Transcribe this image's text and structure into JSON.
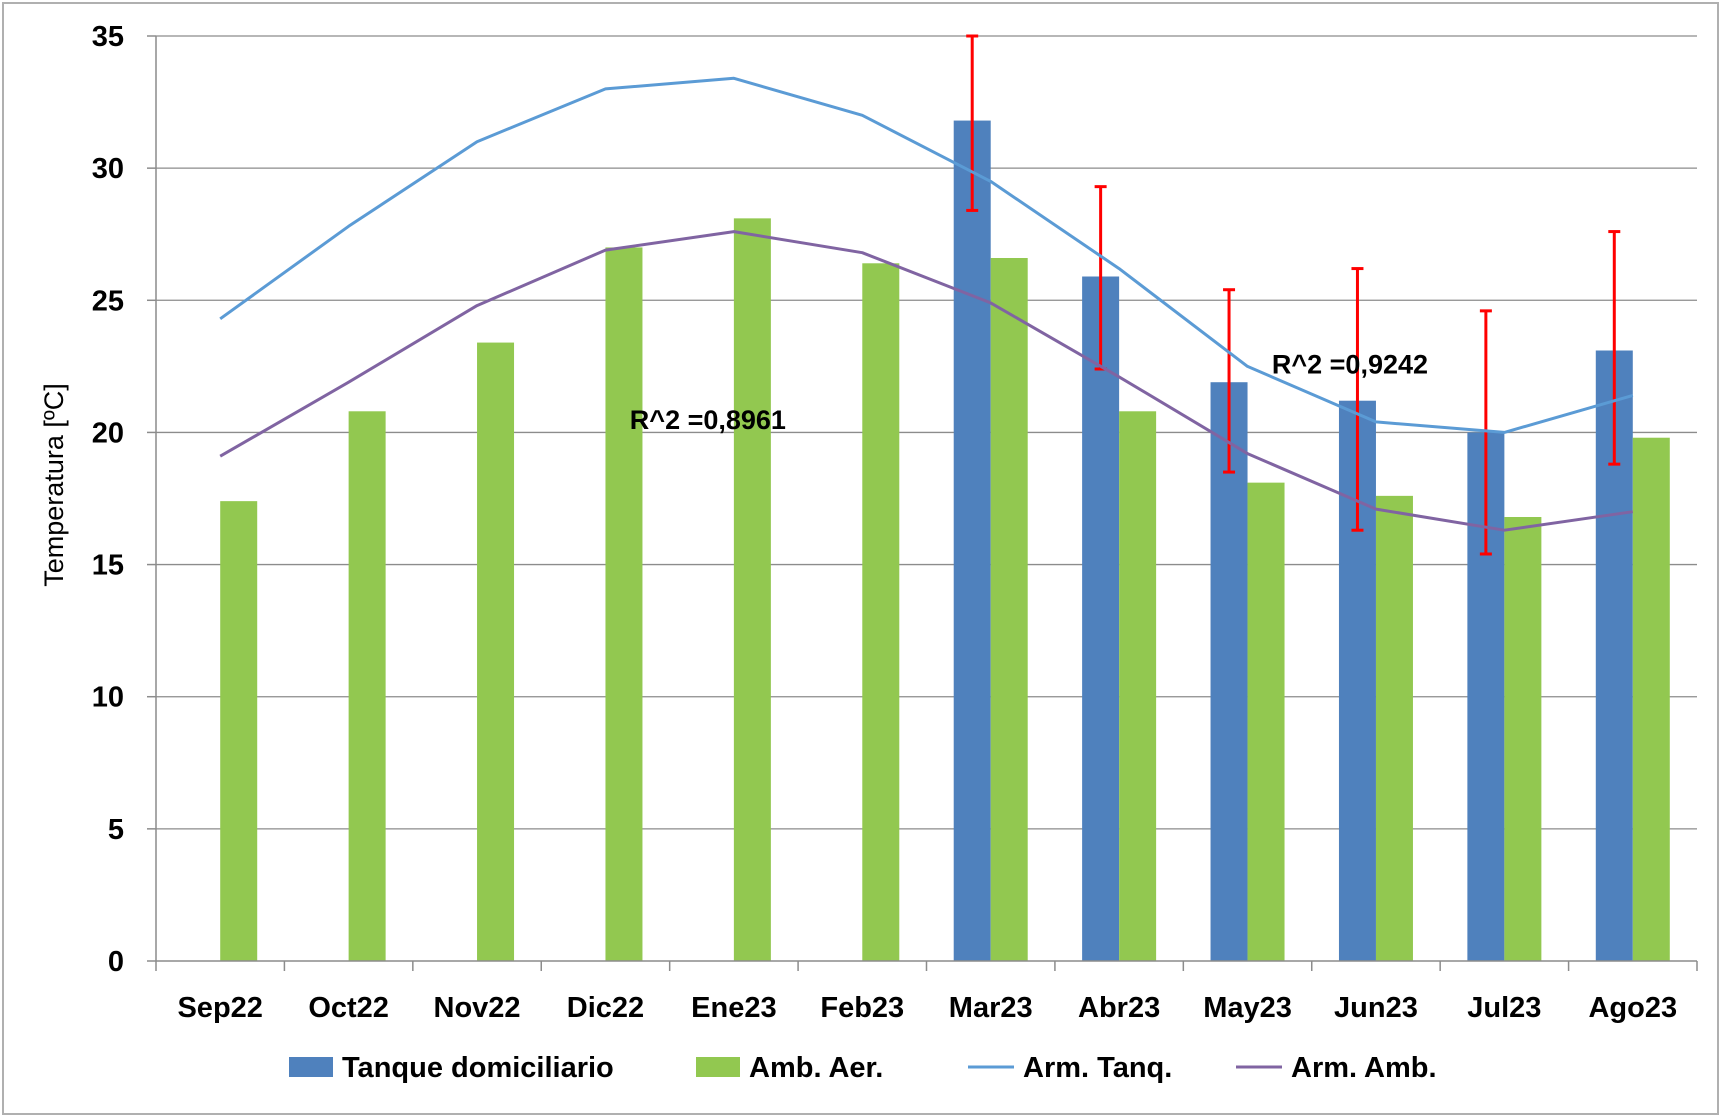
{
  "chart_data": {
    "type": "bar",
    "title": "",
    "xlabel": "",
    "ylabel": "Temperatura [ºC]",
    "ylim": [
      0,
      35
    ],
    "yticks": [
      0,
      5,
      10,
      15,
      20,
      25,
      30,
      35
    ],
    "grid": true,
    "legend_position": "bottom",
    "categories": [
      "Sep22",
      "Oct22",
      "Nov22",
      "Dic22",
      "Ene23",
      "Feb23",
      "Mar23",
      "Abr23",
      "May23",
      "Jun23",
      "Jul23",
      "Ago23"
    ],
    "series": [
      {
        "name": "Tanque domiciliario",
        "kind": "bar",
        "color": "#4f81bd",
        "values": [
          null,
          null,
          null,
          null,
          null,
          null,
          31.8,
          25.9,
          21.9,
          21.2,
          20.0,
          23.1
        ],
        "error_bars": {
          "color": "#ff0000",
          "low": [
            null,
            null,
            null,
            null,
            null,
            null,
            28.4,
            22.4,
            18.5,
            16.3,
            15.4,
            18.8
          ],
          "high": [
            null,
            null,
            null,
            null,
            null,
            null,
            35.0,
            29.3,
            25.4,
            26.2,
            24.6,
            27.6
          ]
        }
      },
      {
        "name": "Amb. Aer.",
        "kind": "bar",
        "color": "#92c850",
        "values": [
          17.4,
          20.8,
          23.4,
          27.0,
          28.1,
          26.4,
          26.6,
          20.8,
          18.1,
          17.6,
          16.8,
          19.8
        ]
      },
      {
        "name": "Arm. Tanq.",
        "kind": "line",
        "color": "#5b9bd5",
        "values": [
          24.3,
          27.8,
          31.0,
          33.0,
          33.4,
          32.0,
          29.5,
          26.2,
          22.5,
          20.4,
          20.0,
          21.4
        ]
      },
      {
        "name": "Arm. Amb.",
        "kind": "line",
        "color": "#8064a2",
        "values": [
          19.1,
          21.9,
          24.8,
          26.9,
          27.6,
          26.8,
          24.9,
          22.1,
          19.2,
          17.1,
          16.3,
          17.0
        ]
      }
    ],
    "annotations": [
      {
        "text": "R^2 =0,8961",
        "x": "Ene23",
        "y": 20.5
      },
      {
        "text": "R^2 =0,9242",
        "x": "Jun23",
        "y": 22.6
      }
    ]
  }
}
